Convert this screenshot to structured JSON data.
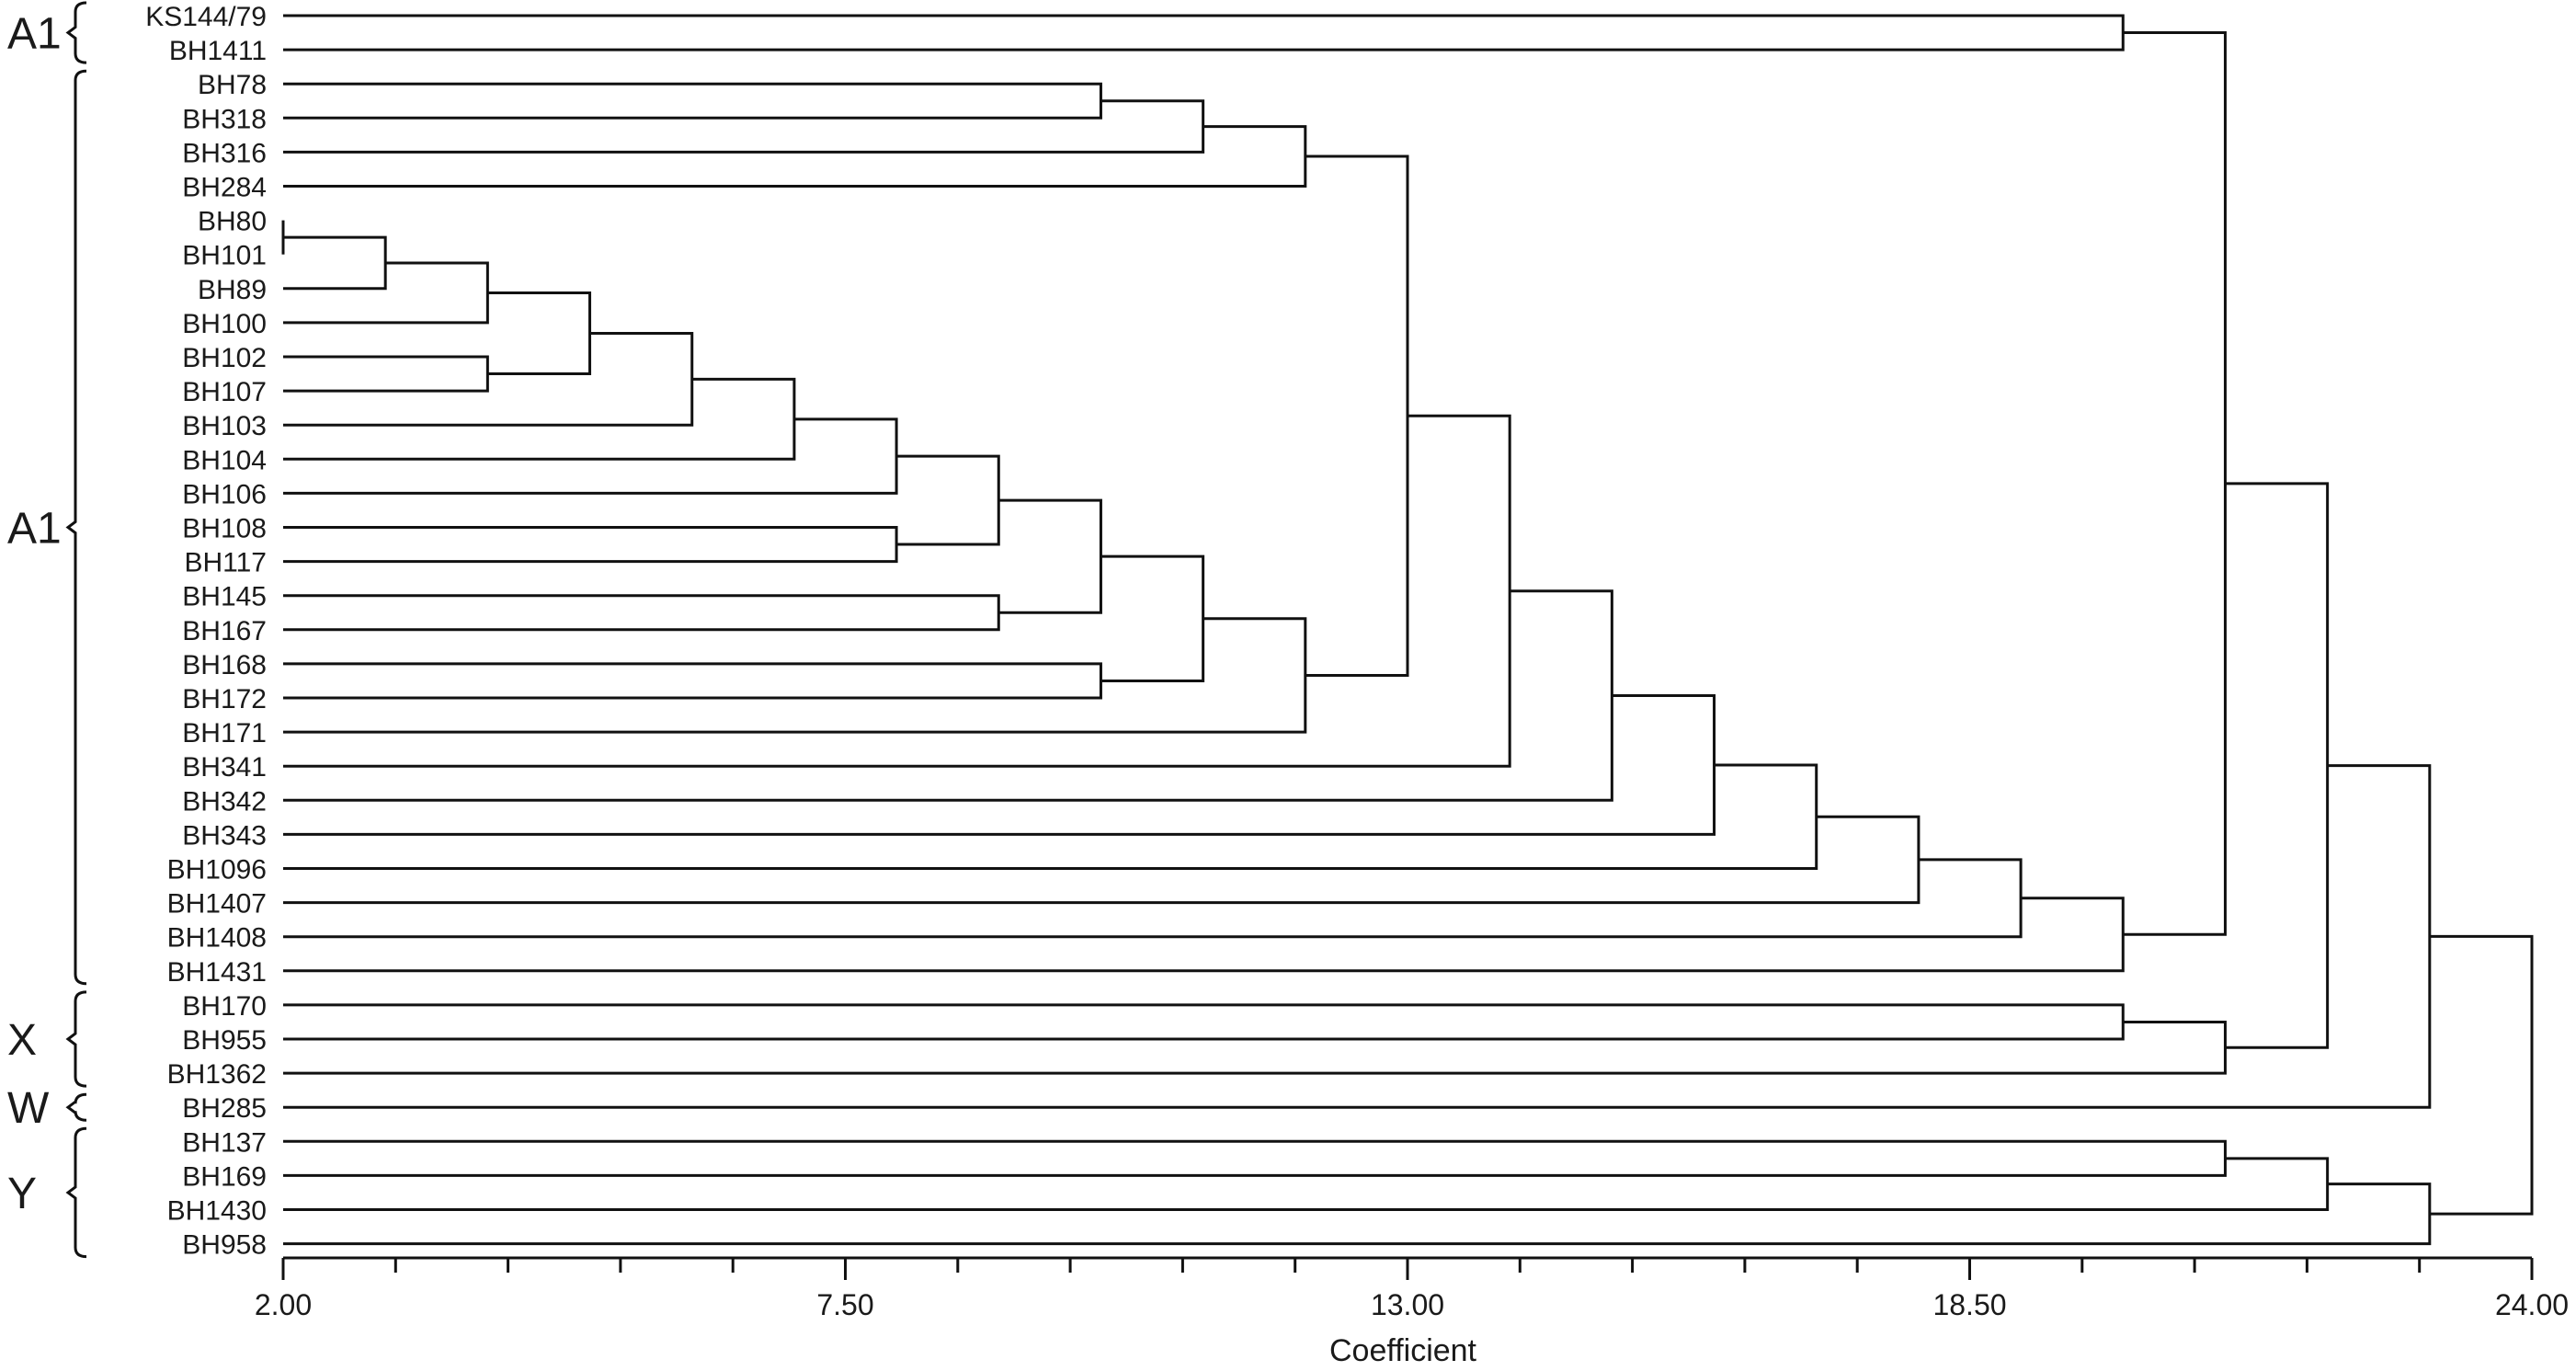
{
  "chart_data": {
    "type": "dendrogram",
    "xlabel": "Coefficient",
    "xlim": [
      2.0,
      24.0
    ],
    "major_ticks": [
      2.0,
      7.5,
      13.0,
      18.5,
      24.0
    ],
    "tick_labels": [
      "2.00",
      "7.50",
      "13.00",
      "18.50",
      "24.00"
    ],
    "minor_tick_step": 1.1,
    "leaves": [
      "KS144/79",
      "BH1411",
      "BH78",
      "BH318",
      "BH316",
      "BH284",
      "BH80",
      "BH101",
      "BH89",
      "BH100",
      "BH102",
      "BH107",
      "BH103",
      "BH104",
      "BH106",
      "BH108",
      "BH117",
      "BH145",
      "BH167",
      "BH168",
      "BH172",
      "BH171",
      "BH341",
      "BH342",
      "BH343",
      "BH1096",
      "BH1407",
      "BH1408",
      "BH1431",
      "BH170",
      "BH955",
      "BH1362",
      "BH285",
      "BH137",
      "BH169",
      "BH1430",
      "BH958"
    ],
    "merges": [
      {
        "id": "m1",
        "a": "KS144/79",
        "b": "BH1411",
        "h": 20.0
      },
      {
        "id": "m2",
        "a": "BH78",
        "b": "BH318",
        "h": 10.0
      },
      {
        "id": "m3",
        "a": "m2",
        "b": "BH316",
        "h": 11.0
      },
      {
        "id": "m4",
        "a": "m3",
        "b": "BH284",
        "h": 12.0
      },
      {
        "id": "m5",
        "a": "BH80",
        "b": "BH101",
        "h": 2.0
      },
      {
        "id": "m6",
        "a": "m5",
        "b": "BH89",
        "h": 3.0
      },
      {
        "id": "m7",
        "a": "m6",
        "b": "BH100",
        "h": 4.0
      },
      {
        "id": "m8",
        "a": "BH102",
        "b": "BH107",
        "h": 4.0
      },
      {
        "id": "m9",
        "a": "m7",
        "b": "m8",
        "h": 5.0
      },
      {
        "id": "m10",
        "a": "m9",
        "b": "BH103",
        "h": 6.0
      },
      {
        "id": "m11",
        "a": "m10",
        "b": "BH104",
        "h": 7.0
      },
      {
        "id": "m12",
        "a": "m11",
        "b": "BH106",
        "h": 8.0
      },
      {
        "id": "m13",
        "a": "BH108",
        "b": "BH117",
        "h": 8.0
      },
      {
        "id": "m14",
        "a": "m12",
        "b": "m13",
        "h": 9.0
      },
      {
        "id": "m15",
        "a": "BH145",
        "b": "BH167",
        "h": 9.0
      },
      {
        "id": "m16",
        "a": "m14",
        "b": "m15",
        "h": 10.0
      },
      {
        "id": "m17",
        "a": "BH168",
        "b": "BH172",
        "h": 10.0
      },
      {
        "id": "m18",
        "a": "m16",
        "b": "m17",
        "h": 11.0
      },
      {
        "id": "m19",
        "a": "m18",
        "b": "BH171",
        "h": 12.0
      },
      {
        "id": "m20",
        "a": "m4",
        "b": "m19",
        "h": 13.0
      },
      {
        "id": "m21",
        "a": "m20",
        "b": "BH341",
        "h": 14.0
      },
      {
        "id": "m22",
        "a": "m21",
        "b": "BH342",
        "h": 15.0
      },
      {
        "id": "m23",
        "a": "m22",
        "b": "BH343",
        "h": 16.0
      },
      {
        "id": "m24",
        "a": "m23",
        "b": "BH1096",
        "h": 17.0
      },
      {
        "id": "m25",
        "a": "m24",
        "b": "BH1407",
        "h": 18.0
      },
      {
        "id": "m26",
        "a": "m25",
        "b": "BH1408",
        "h": 19.0
      },
      {
        "id": "m27",
        "a": "m26",
        "b": "BH1431",
        "h": 20.0
      },
      {
        "id": "m28",
        "a": "m1",
        "b": "m27",
        "h": 21.0
      },
      {
        "id": "m29",
        "a": "BH170",
        "b": "BH955",
        "h": 20.0
      },
      {
        "id": "m30",
        "a": "m29",
        "b": "BH1362",
        "h": 21.0
      },
      {
        "id": "m31",
        "a": "m28",
        "b": "m30",
        "h": 22.0
      },
      {
        "id": "m32",
        "a": "m31",
        "b": "BH285",
        "h": 23.0
      },
      {
        "id": "m33",
        "a": "BH137",
        "b": "BH169",
        "h": 21.0
      },
      {
        "id": "m34",
        "a": "m33",
        "b": "BH1430",
        "h": 22.0
      },
      {
        "id": "m35",
        "a": "m34",
        "b": "BH958",
        "h": 23.0
      },
      {
        "id": "m36",
        "a": "m32",
        "b": "m35",
        "h": 24.0
      }
    ],
    "groups": [
      {
        "label": "A1",
        "first": "KS144/79",
        "last": "BH1411"
      },
      {
        "label": "A1",
        "first": "BH78",
        "last": "BH1431"
      },
      {
        "label": "X",
        "first": "BH170",
        "last": "BH1362"
      },
      {
        "label": "W",
        "first": "BH285",
        "last": "BH285"
      },
      {
        "label": "Y",
        "first": "BH137",
        "last": "BH958"
      }
    ]
  }
}
